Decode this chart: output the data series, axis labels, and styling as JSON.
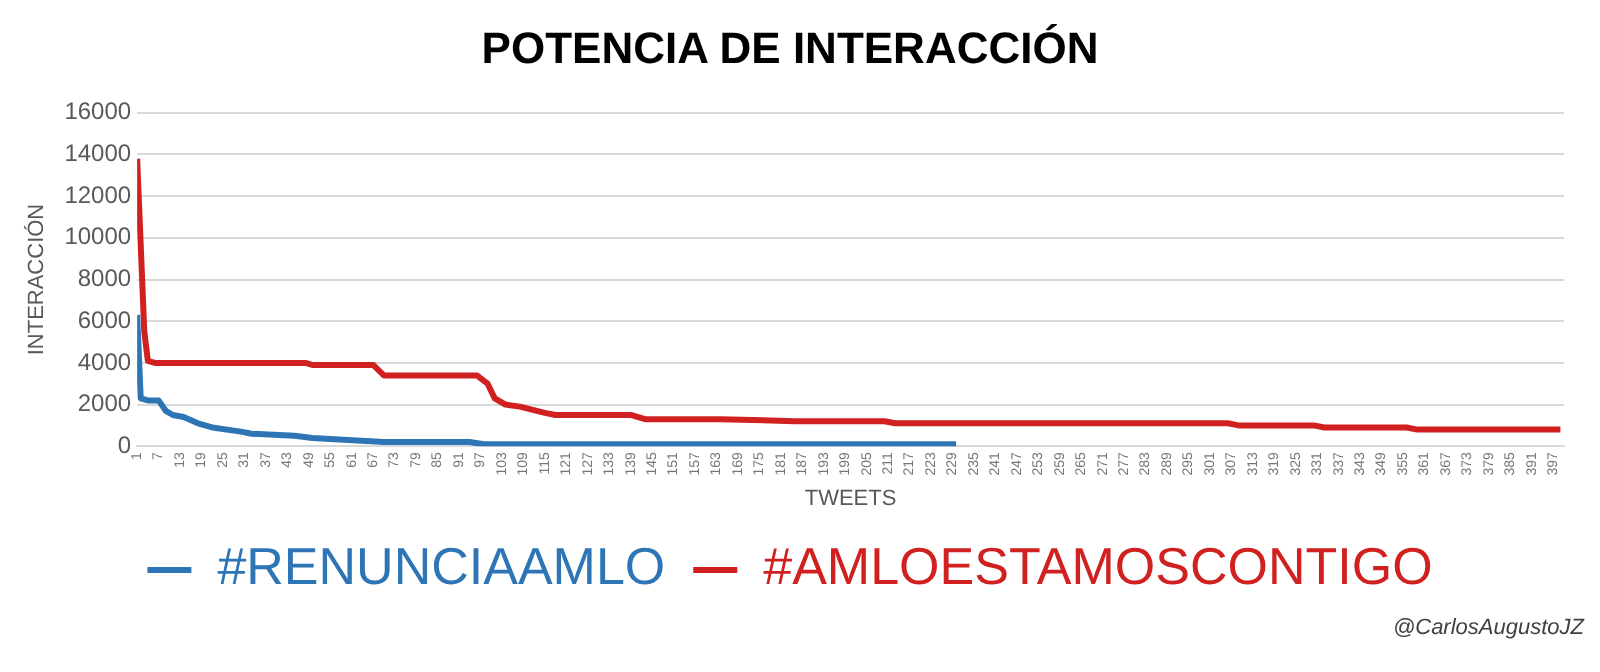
{
  "chart_data": {
    "type": "line",
    "title": "POTENCIA DE INTERACCIÓN",
    "xlabel": "TWEETS",
    "ylabel": "INTERACCIÓN",
    "xlim": [
      1,
      400
    ],
    "xticks": [
      1,
      7,
      13,
      19,
      25,
      31,
      37,
      43,
      49,
      55,
      61,
      67,
      73,
      79,
      85,
      91,
      97,
      103,
      109,
      115,
      121,
      127,
      133,
      139,
      145,
      151,
      157,
      163,
      169,
      175,
      181,
      187,
      193,
      199,
      205,
      211,
      217,
      223,
      229,
      235,
      241,
      247,
      253,
      259,
      265,
      271,
      277,
      283,
      289,
      295,
      301,
      307,
      313,
      319,
      325,
      331,
      337,
      343,
      349,
      355,
      361,
      367,
      373,
      379,
      385,
      391,
      397
    ],
    "ylim": [
      0,
      16000
    ],
    "yticks": [
      0,
      2000,
      4000,
      6000,
      8000,
      10000,
      12000,
      14000,
      16000
    ],
    "grid": "y",
    "legend": "bottom",
    "marker": "none",
    "line_style": "solid",
    "series": [
      {
        "name": "#RENUNCIAAMLO",
        "color": "#2e75b6",
        "x": [
          1,
          2,
          4,
          7,
          9,
          11,
          14,
          18,
          22,
          30,
          33,
          45,
          50,
          60,
          70,
          94,
          98,
          115,
          150,
          200,
          230
        ],
        "values": [
          6300,
          2300,
          2200,
          2200,
          1700,
          1500,
          1400,
          1100,
          900,
          700,
          600,
          500,
          400,
          300,
          200,
          200,
          100,
          100,
          100,
          100,
          100
        ]
      },
      {
        "name": "#AMLOESTAMOSCONTIGO",
        "color": "#d0201f",
        "x": [
          1,
          3,
          4,
          6,
          48,
          50,
          67,
          70,
          96,
          99,
          101,
          104,
          108,
          115,
          118,
          139,
          143,
          160,
          164,
          185,
          190,
          210,
          213,
          245,
          248,
          306,
          309,
          330,
          333,
          356,
          359,
          399
        ],
        "values": [
          13800,
          5500,
          4100,
          4000,
          4000,
          3900,
          3900,
          3400,
          3400,
          3000,
          2300,
          2000,
          1900,
          1600,
          1500,
          1500,
          1300,
          1300,
          1300,
          1200,
          1200,
          1200,
          1100,
          1100,
          1100,
          1100,
          1000,
          1000,
          900,
          900,
          800,
          800
        ]
      }
    ],
    "annotations": [
      "@CarlosAugustoJZ"
    ]
  }
}
